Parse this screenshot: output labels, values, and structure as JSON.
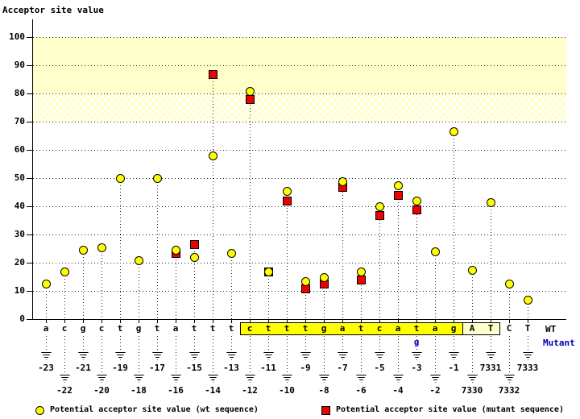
{
  "title": "Acceptor site value",
  "legend": {
    "wt_label": "Potential acceptor site value (wt sequence)",
    "mutant_label": "Potential acceptor site value (mutant sequence)"
  },
  "chart_data": {
    "type": "scatter",
    "title": "Acceptor site value",
    "ylabel": "Acceptor site value",
    "ylim": [
      0,
      105
    ],
    "yticks": [
      0,
      10,
      20,
      30,
      40,
      50,
      60,
      70,
      80,
      90,
      100
    ],
    "grid": "horizontal-dotted",
    "legend_position": "bottom",
    "bands": [
      {
        "from": 80,
        "to": 100,
        "style": "solid",
        "color": "#ffffcc"
      },
      {
        "from": 70,
        "to": 80,
        "style": "crosshatch",
        "color": "#ffffcc"
      }
    ],
    "series": [
      {
        "name": "wt",
        "label": "Potential acceptor site value (wt sequence)",
        "marker": "circle",
        "color": "#ffff00"
      },
      {
        "name": "mutant",
        "label": "Potential acceptor site value (mutant sequence)",
        "marker": "square",
        "color": "#ee0000"
      }
    ],
    "x_axis": {
      "wt_row_label": "WT",
      "mutant_row_label": "Mutant",
      "mutant_color": "#0000bb",
      "highlight_boxes": [
        {
          "from_pos": "-12",
          "to_pos": "-1",
          "color": "#ffff00"
        },
        {
          "from_pos": "7330",
          "to_pos": "7331",
          "color": "#ffffcc"
        }
      ]
    },
    "points": [
      {
        "pos": "-23",
        "base": "a",
        "row": 1,
        "wt": 12.5,
        "mut": null
      },
      {
        "pos": "-22",
        "base": "c",
        "row": 2,
        "wt": 17,
        "mut": null
      },
      {
        "pos": "-21",
        "base": "g",
        "row": 1,
        "wt": 24.5,
        "mut": null
      },
      {
        "pos": "-20",
        "base": "c",
        "row": 2,
        "wt": 25.5,
        "mut": null
      },
      {
        "pos": "-19",
        "base": "t",
        "row": 1,
        "wt": 50,
        "mut": null
      },
      {
        "pos": "-18",
        "base": "g",
        "row": 2,
        "wt": 21,
        "mut": null
      },
      {
        "pos": "-17",
        "base": "t",
        "row": 1,
        "wt": 50,
        "mut": null
      },
      {
        "pos": "-16",
        "base": "a",
        "row": 2,
        "wt": 24.5,
        "mut": 23.5
      },
      {
        "pos": "-15",
        "base": "t",
        "row": 1,
        "wt": 22,
        "mut": 26.5
      },
      {
        "pos": "-14",
        "base": "t",
        "row": 2,
        "wt": 58,
        "mut": 87
      },
      {
        "pos": "-13",
        "base": "t",
        "row": 1,
        "wt": 23.5,
        "mut": null
      },
      {
        "pos": "-12",
        "base": "c",
        "row": 2,
        "wt": 81,
        "mut": 78
      },
      {
        "pos": "-11",
        "base": "t",
        "row": 1,
        "wt": 17,
        "mut": 17
      },
      {
        "pos": "-10",
        "base": "t",
        "row": 2,
        "wt": 45.5,
        "mut": 42
      },
      {
        "pos": "-9",
        "base": "t",
        "row": 1,
        "wt": 13.5,
        "mut": 11
      },
      {
        "pos": "-8",
        "base": "g",
        "row": 2,
        "wt": 15,
        "mut": 12.5
      },
      {
        "pos": "-7",
        "base": "a",
        "row": 1,
        "wt": 49,
        "mut": 47
      },
      {
        "pos": "-6",
        "base": "t",
        "row": 2,
        "wt": 17,
        "mut": 14
      },
      {
        "pos": "-5",
        "base": "c",
        "row": 1,
        "wt": 40,
        "mut": 37
      },
      {
        "pos": "-4",
        "base": "a",
        "row": 2,
        "wt": 47.5,
        "mut": 44
      },
      {
        "pos": "-3",
        "base": "t",
        "row": 1,
        "wt": 42,
        "mut": 39,
        "mutant_base": "g"
      },
      {
        "pos": "-2",
        "base": "a",
        "row": 2,
        "wt": 24,
        "mut": null
      },
      {
        "pos": "-1",
        "base": "g",
        "row": 1,
        "wt": 66.5,
        "mut": null
      },
      {
        "pos": "7330",
        "base": "A",
        "row": 2,
        "wt": 17.5,
        "mut": null
      },
      {
        "pos": "7331",
        "base": "T",
        "row": 1,
        "wt": 41.5,
        "mut": null
      },
      {
        "pos": "7332",
        "base": "C",
        "row": 2,
        "wt": 12.5,
        "mut": null
      },
      {
        "pos": "7333",
        "base": "T",
        "row": 1,
        "wt": 7,
        "mut": null
      }
    ]
  }
}
